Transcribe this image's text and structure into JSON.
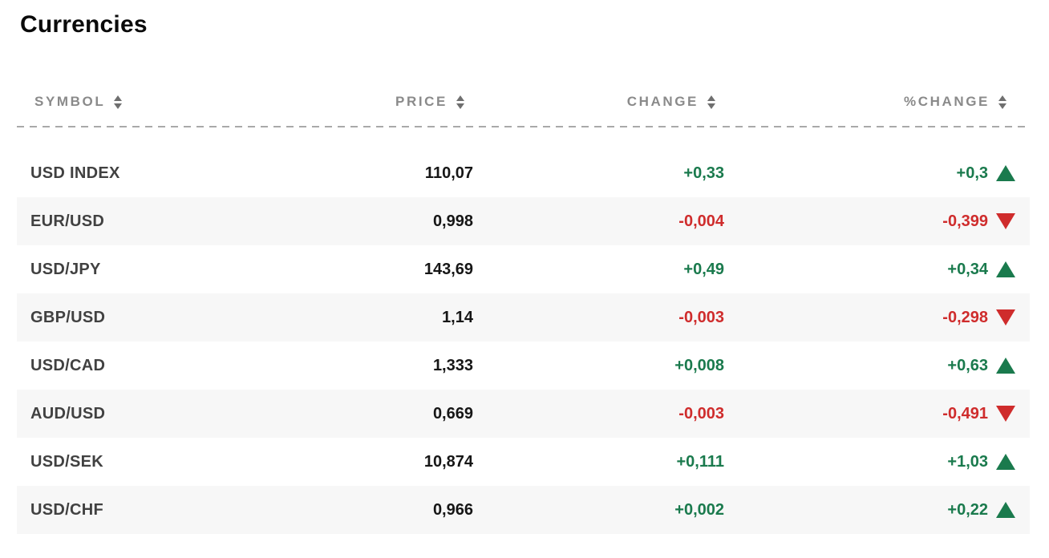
{
  "page": {
    "title": "Currencies",
    "colors": {
      "title": "#0a0a0a",
      "header_text": "#8a8a8a",
      "sort_icon": "#6f6f6f",
      "divider": "#a9a9a9",
      "symbol_text": "#414141",
      "price_text": "#161616",
      "positive": "#1a7a4d",
      "negative": "#cf2c2c",
      "row_alt": "#f7f7f7"
    }
  },
  "icons": {
    "sort": "sort-arrows-icon",
    "up": "triangle-up-icon",
    "down": "triangle-down-icon"
  },
  "table": {
    "columns": [
      {
        "key": "symbol",
        "label": "SYMBOL",
        "sortable": true
      },
      {
        "key": "price",
        "label": "PRICE",
        "sortable": true
      },
      {
        "key": "change",
        "label": "CHANGE",
        "sortable": true
      },
      {
        "key": "pct_change",
        "label": "%CHANGE",
        "sortable": true
      }
    ],
    "rows": [
      {
        "symbol": "USD INDEX",
        "price": "110,07",
        "change": "+0,33",
        "pct_change": "+0,3",
        "direction": "up"
      },
      {
        "symbol": "EUR/USD",
        "price": "0,998",
        "change": "-0,004",
        "pct_change": "-0,399",
        "direction": "down"
      },
      {
        "symbol": "USD/JPY",
        "price": "143,69",
        "change": "+0,49",
        "pct_change": "+0,34",
        "direction": "up"
      },
      {
        "symbol": "GBP/USD",
        "price": "1,14",
        "change": "-0,003",
        "pct_change": "-0,298",
        "direction": "down"
      },
      {
        "symbol": "USD/CAD",
        "price": "1,333",
        "change": "+0,008",
        "pct_change": "+0,63",
        "direction": "up"
      },
      {
        "symbol": "AUD/USD",
        "price": "0,669",
        "change": "-0,003",
        "pct_change": "-0,491",
        "direction": "down"
      },
      {
        "symbol": "USD/SEK",
        "price": "10,874",
        "change": "+0,111",
        "pct_change": "+1,03",
        "direction": "up"
      },
      {
        "symbol": "USD/CHF",
        "price": "0,966",
        "change": "+0,002",
        "pct_change": "+0,22",
        "direction": "up"
      }
    ]
  }
}
